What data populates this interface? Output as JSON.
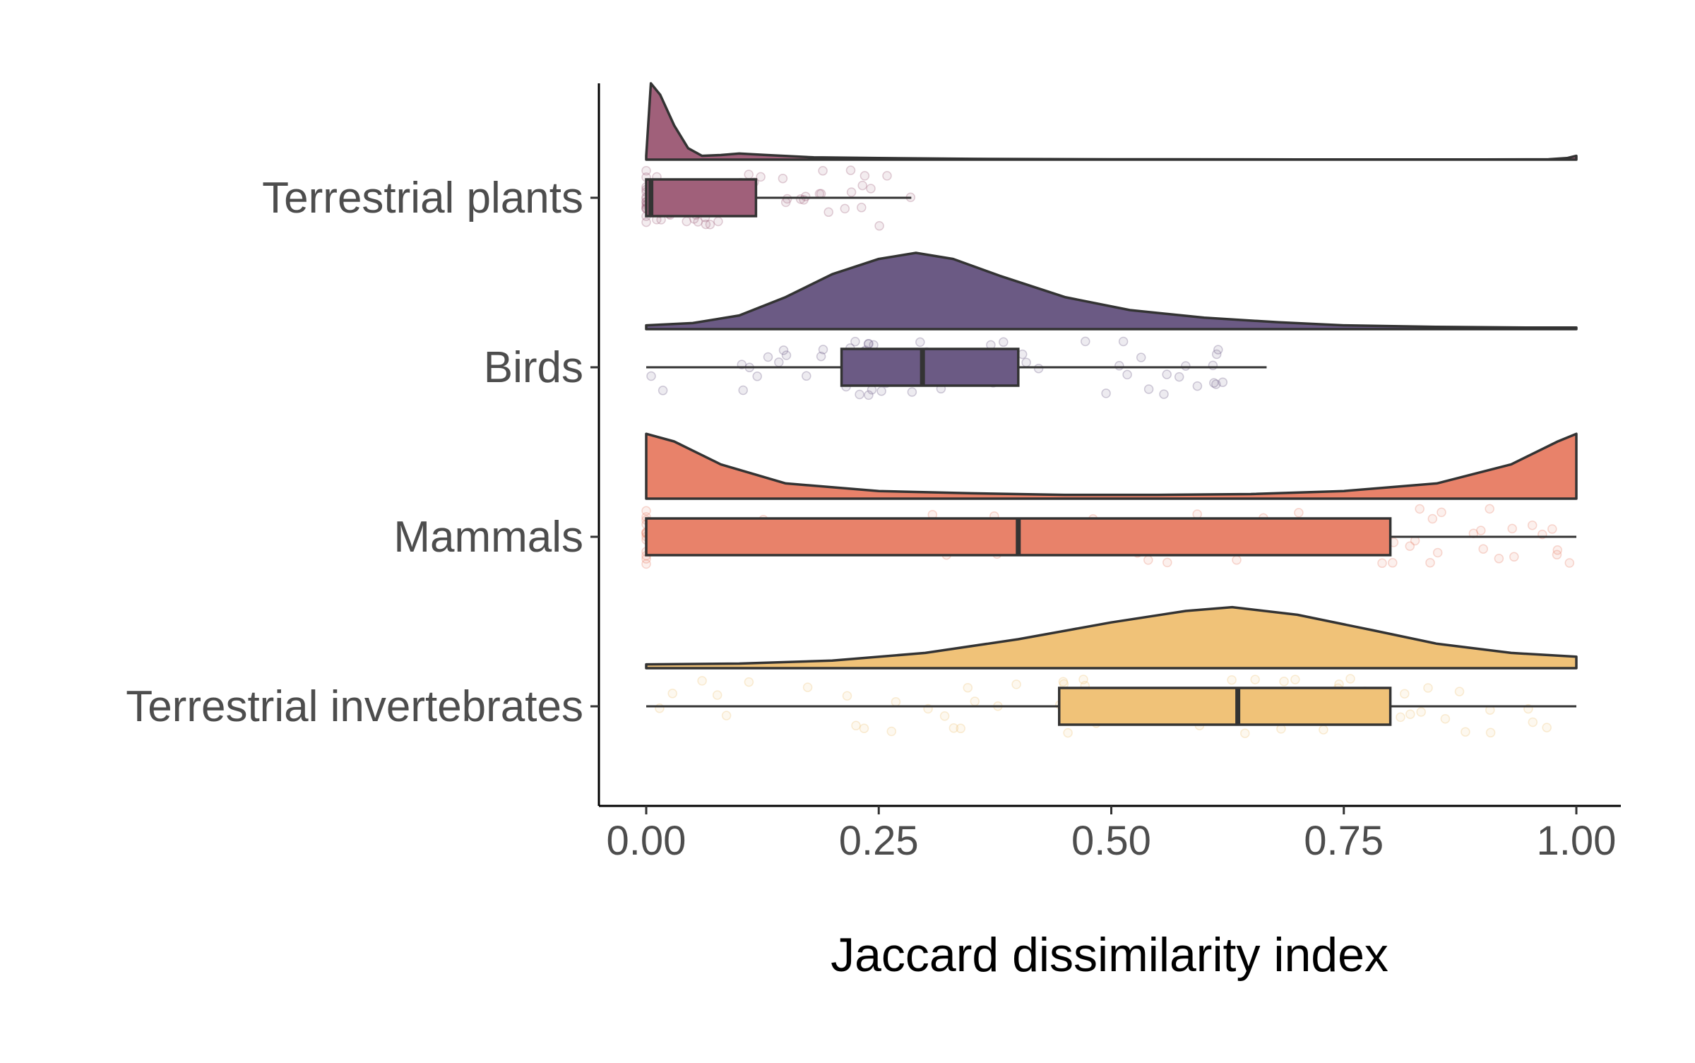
{
  "chart_data": {
    "type": "raincloud",
    "orientation": "horizontal",
    "title": "",
    "xlabel": "Jaccard dissimilarity index",
    "ylabel": "",
    "xlim": [
      -0.05,
      1.05
    ],
    "x_ticks": [
      0,
      0.25,
      0.5,
      0.75,
      1
    ],
    "x_tick_labels": [
      "0.00",
      "0.25",
      "0.50",
      "0.75",
      "1.00"
    ],
    "grid": false,
    "legend": "none",
    "categories": [
      "Terrestrial plants",
      "Birds",
      "Mammals",
      "Terrestrial invertebrates"
    ],
    "series": [
      {
        "category": "Terrestrial plants",
        "color": "#a0607a",
        "box": {
          "lower_whisker": 0.0,
          "q1": 0.0,
          "median": 0.005,
          "q3": 0.118,
          "upper_whisker": 0.285
        },
        "density": [
          [
            0,
            0.05
          ],
          [
            0.005,
            1.0
          ],
          [
            0.015,
            0.85
          ],
          [
            0.03,
            0.45
          ],
          [
            0.045,
            0.15
          ],
          [
            0.06,
            0.05
          ],
          [
            0.08,
            0.06
          ],
          [
            0.1,
            0.08
          ],
          [
            0.13,
            0.06
          ],
          [
            0.18,
            0.03
          ],
          [
            0.25,
            0.02
          ],
          [
            0.35,
            0.01
          ],
          [
            0.5,
            0.005
          ],
          [
            0.7,
            0.003
          ],
          [
            0.9,
            0.003
          ],
          [
            0.97,
            0.005
          ],
          [
            0.99,
            0.02
          ],
          [
            1.0,
            0.05
          ]
        ]
      },
      {
        "category": "Birds",
        "color": "#6b5a84",
        "box": {
          "lower_whisker": 0.0,
          "q1": 0.21,
          "median": 0.297,
          "q3": 0.4,
          "upper_whisker": 0.667
        },
        "density": [
          [
            0,
            0.05
          ],
          [
            0.05,
            0.08
          ],
          [
            0.1,
            0.18
          ],
          [
            0.15,
            0.42
          ],
          [
            0.2,
            0.72
          ],
          [
            0.25,
            0.92
          ],
          [
            0.29,
            1.0
          ],
          [
            0.33,
            0.92
          ],
          [
            0.38,
            0.7
          ],
          [
            0.45,
            0.42
          ],
          [
            0.52,
            0.25
          ],
          [
            0.6,
            0.15
          ],
          [
            0.68,
            0.09
          ],
          [
            0.75,
            0.05
          ],
          [
            0.85,
            0.03
          ],
          [
            0.95,
            0.02
          ],
          [
            1.0,
            0.02
          ]
        ]
      },
      {
        "category": "Mammals",
        "color": "#e8826a",
        "box": {
          "lower_whisker": 0.0,
          "q1": 0.0,
          "median": 0.4,
          "q3": 0.8,
          "upper_whisker": 1.0
        },
        "density": [
          [
            0,
            0.85
          ],
          [
            0.03,
            0.75
          ],
          [
            0.08,
            0.45
          ],
          [
            0.15,
            0.2
          ],
          [
            0.25,
            0.1
          ],
          [
            0.35,
            0.07
          ],
          [
            0.45,
            0.05
          ],
          [
            0.55,
            0.05
          ],
          [
            0.65,
            0.06
          ],
          [
            0.75,
            0.1
          ],
          [
            0.85,
            0.2
          ],
          [
            0.93,
            0.45
          ],
          [
            0.98,
            0.75
          ],
          [
            1.0,
            0.85
          ]
        ]
      },
      {
        "category": "Terrestrial invertebrates",
        "color": "#f0c278",
        "box": {
          "lower_whisker": 0.0,
          "q1": 0.444,
          "median": 0.636,
          "q3": 0.8,
          "upper_whisker": 1.0
        },
        "density": [
          [
            0,
            0.05
          ],
          [
            0.1,
            0.06
          ],
          [
            0.2,
            0.1
          ],
          [
            0.3,
            0.2
          ],
          [
            0.4,
            0.38
          ],
          [
            0.5,
            0.6
          ],
          [
            0.58,
            0.75
          ],
          [
            0.63,
            0.8
          ],
          [
            0.7,
            0.7
          ],
          [
            0.78,
            0.5
          ],
          [
            0.85,
            0.32
          ],
          [
            0.93,
            0.2
          ],
          [
            1.0,
            0.15
          ]
        ]
      }
    ]
  }
}
